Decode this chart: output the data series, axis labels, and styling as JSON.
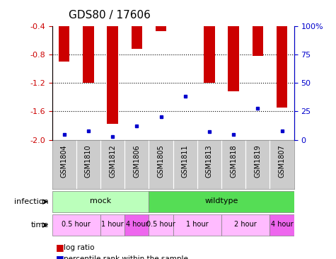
{
  "title": "GDS80 / 17606",
  "samples": [
    "GSM1804",
    "GSM1810",
    "GSM1812",
    "GSM1806",
    "GSM1805",
    "GSM1811",
    "GSM1813",
    "GSM1818",
    "GSM1819",
    "GSM1807"
  ],
  "log_ratios": [
    -0.9,
    -1.2,
    -1.78,
    -0.72,
    -0.47,
    -0.39,
    -1.2,
    -1.32,
    -0.82,
    -1.55
  ],
  "percentile_ranks": [
    5,
    8,
    3,
    12,
    20,
    38,
    7,
    5,
    28,
    8
  ],
  "ylim_left": [
    -2.0,
    -0.4
  ],
  "ylim_right": [
    0,
    100
  ],
  "yticks_left": [
    -2.0,
    -1.6,
    -1.2,
    -0.8,
    -0.4
  ],
  "yticks_right": [
    0,
    25,
    50,
    75,
    100
  ],
  "ytick_labels_right": [
    "0",
    "25",
    "50",
    "75",
    "100%"
  ],
  "infection_groups": [
    {
      "label": "mock",
      "start": 0,
      "end": 4,
      "color": "#bbffbb"
    },
    {
      "label": "wildtype",
      "start": 4,
      "end": 10,
      "color": "#55dd55"
    }
  ],
  "time_groups": [
    {
      "label": "0.5 hour",
      "start": 0,
      "end": 2,
      "color": "#ffbbff"
    },
    {
      "label": "1 hour",
      "start": 2,
      "end": 3,
      "color": "#ffbbff"
    },
    {
      "label": "4 hour",
      "start": 3,
      "end": 4,
      "color": "#ee66ee"
    },
    {
      "label": "0.5 hour",
      "start": 4,
      "end": 5,
      "color": "#ffbbff"
    },
    {
      "label": "1 hour",
      "start": 5,
      "end": 7,
      "color": "#ffbbff"
    },
    {
      "label": "2 hour",
      "start": 7,
      "end": 9,
      "color": "#ffbbff"
    },
    {
      "label": "4 hour",
      "start": 9,
      "end": 10,
      "color": "#ee66ee"
    }
  ],
  "bar_color": "#cc0000",
  "dot_color": "#0000cc",
  "bar_width": 0.45,
  "grid_color": "black",
  "infection_label": "infection",
  "time_label": "time",
  "legend_items": [
    "log ratio",
    "percentile rank within the sample"
  ],
  "legend_colors": [
    "#cc0000",
    "#0000cc"
  ],
  "bg_color": "#ffffff",
  "tick_label_color_left": "#cc0000",
  "tick_label_color_right": "#0000cc",
  "sample_label_bg": "#cccccc",
  "title_fontsize": 11,
  "label_fontsize": 8,
  "tick_fontsize": 8,
  "sample_fontsize": 7
}
